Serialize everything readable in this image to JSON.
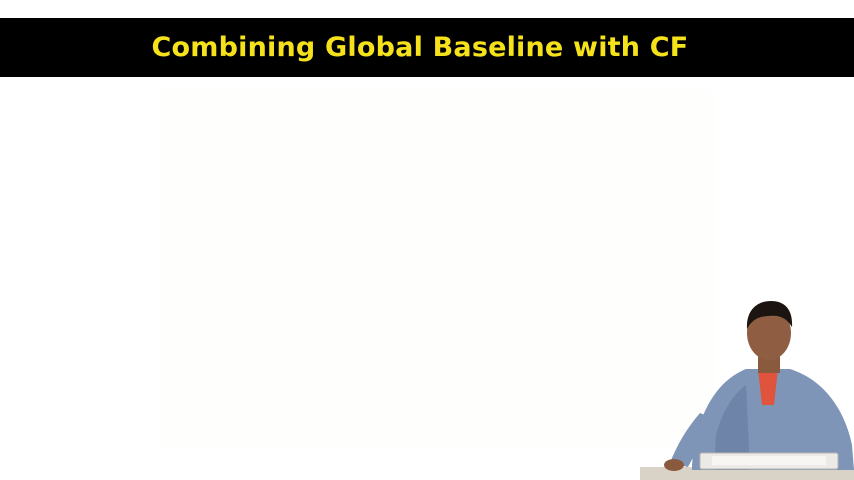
{
  "slide": {
    "title": "Combining Global Baseline with CF"
  },
  "colors": {
    "title_bar": "#000000",
    "title_text": "#f5e21b",
    "background": "#ffffff"
  },
  "presenter": {
    "description_icon": "presenter-figure"
  }
}
